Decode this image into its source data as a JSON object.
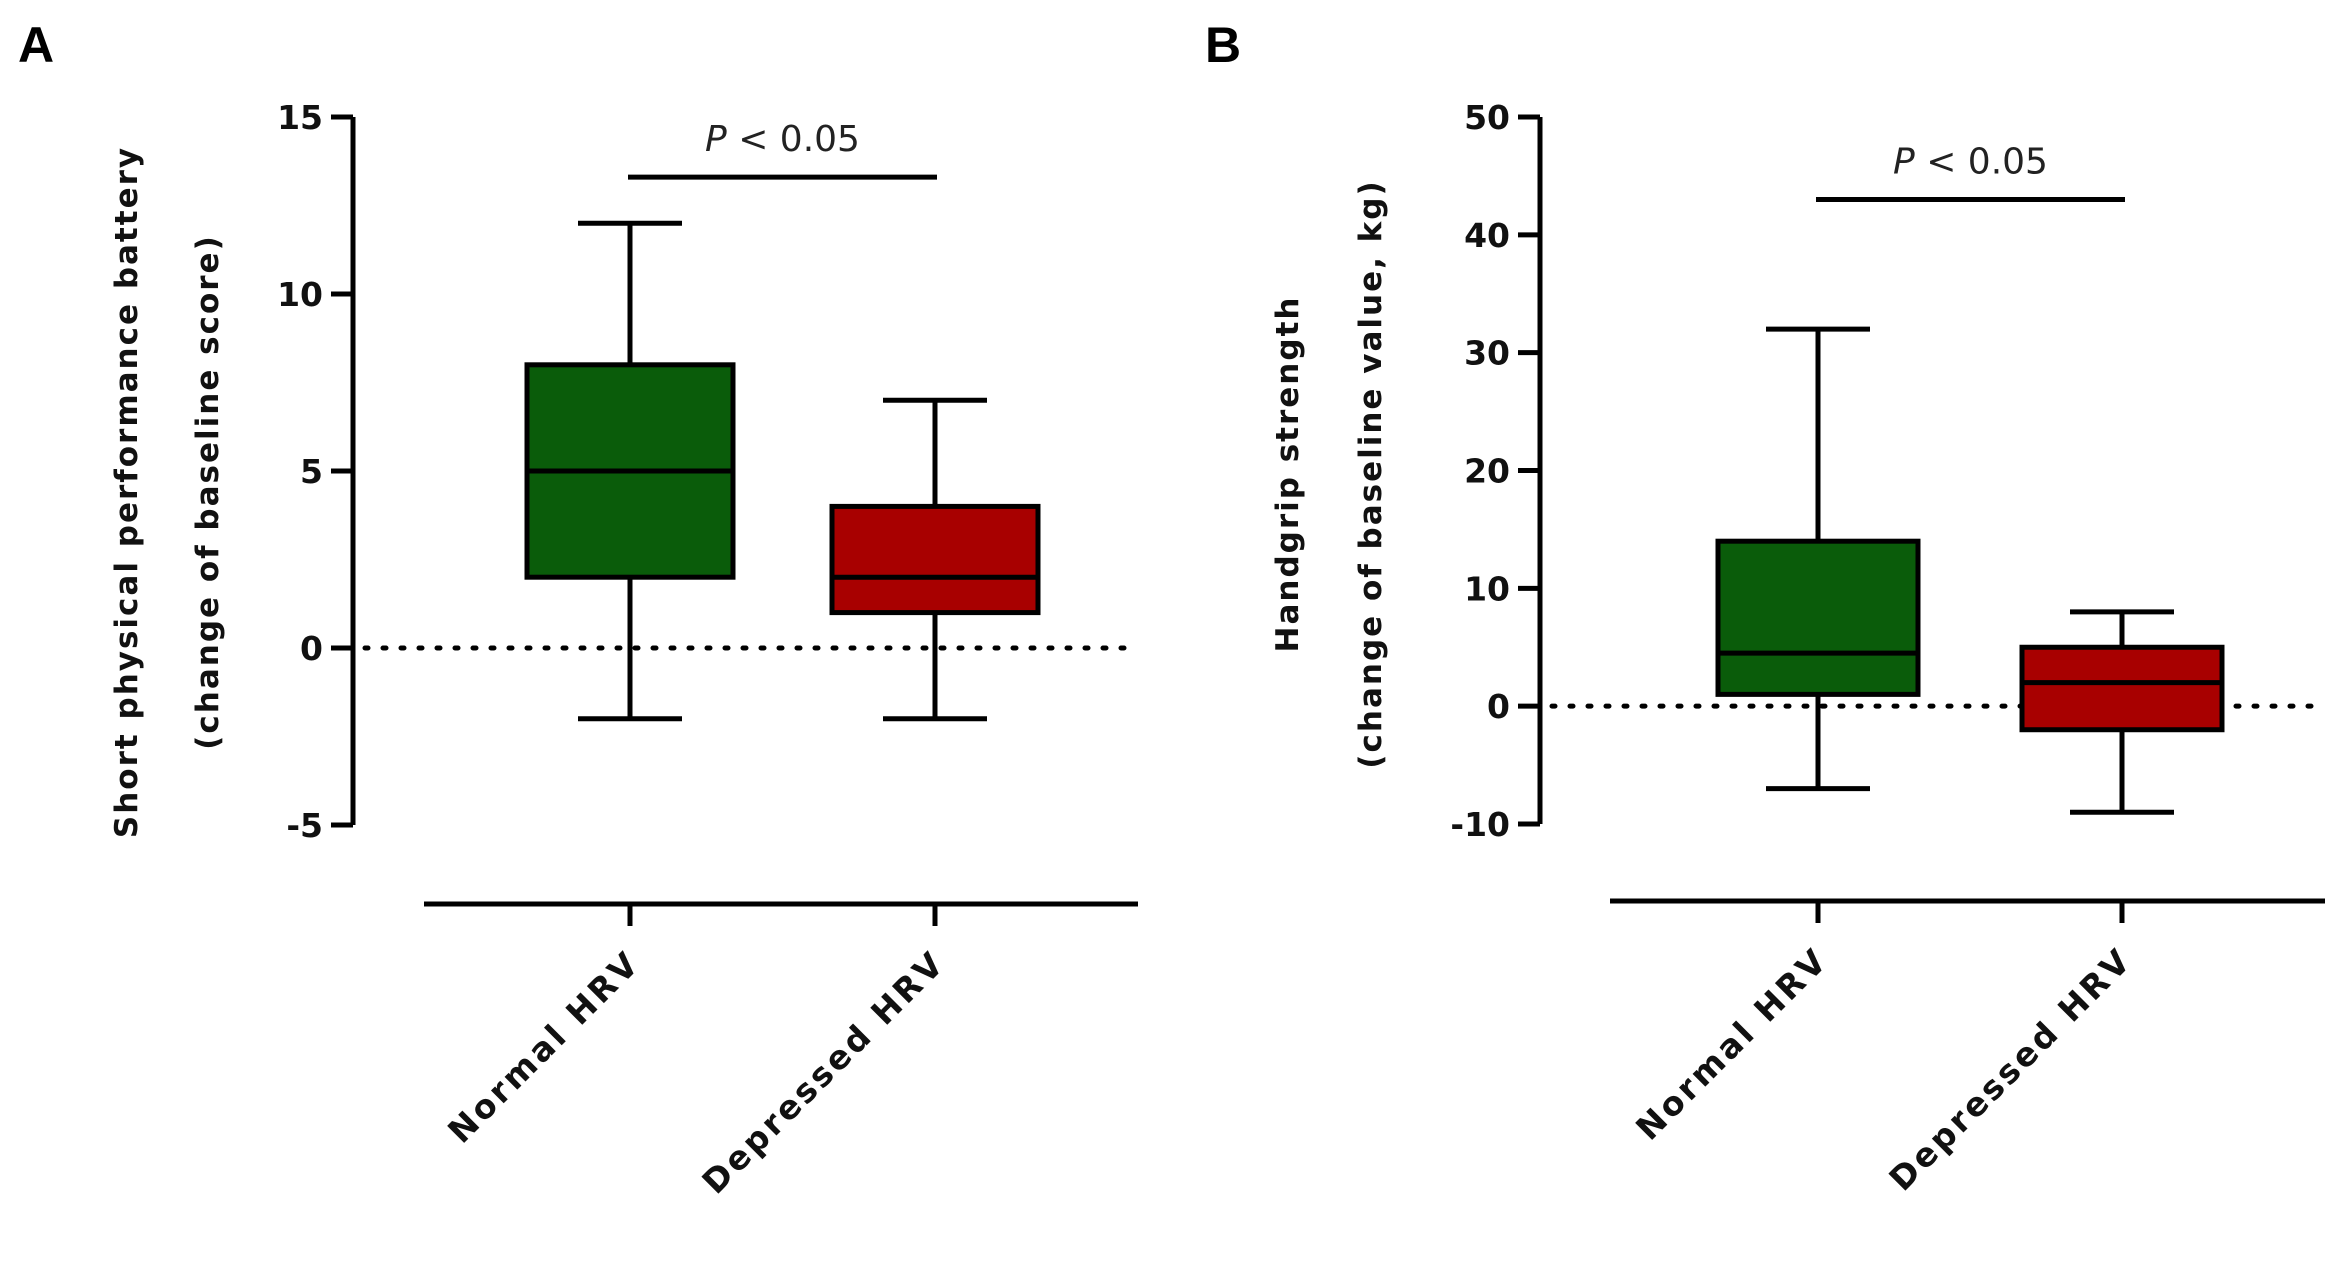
{
  "chart_data": [
    {
      "panel": "A",
      "type": "box",
      "ylabel_line1": "Short physical performance battery",
      "ylabel_line2": "(change of baseline score)",
      "ylim": [
        -5,
        15
      ],
      "yticks": [
        15,
        10,
        5,
        0,
        -5
      ],
      "ytick_labels": [
        "15",
        "10",
        "5",
        "0",
        "-5"
      ],
      "reference_line": 0,
      "categories": [
        "Normal HRV",
        "Depressed HRV"
      ],
      "boxes": [
        {
          "name": "Normal HRV",
          "min": -2,
          "q1": 2,
          "median": 5,
          "q3": 8,
          "max": 12,
          "color": "#0a5c0a"
        },
        {
          "name": "Depressed HRV",
          "min": -2,
          "q1": 1,
          "median": 2,
          "q3": 4,
          "max": 7,
          "color": "#a80000"
        }
      ],
      "significance": {
        "p_symbol": "P",
        "text": " < 0.05",
        "y": 13.3
      }
    },
    {
      "panel": "B",
      "type": "box",
      "ylabel_line1": "Handgrip strength",
      "ylabel_line2": "(change of baseline value, kg)",
      "ylim": [
        -10,
        50
      ],
      "yticks": [
        50,
        40,
        30,
        20,
        10,
        0,
        -10
      ],
      "ytick_labels": [
        "50",
        "40",
        "30",
        "20",
        "10",
        "0",
        "-10"
      ],
      "reference_line": 0,
      "categories": [
        "Normal HRV",
        "Depressed HRV"
      ],
      "boxes": [
        {
          "name": "Normal HRV",
          "min": -7,
          "q1": 1,
          "median": 4.5,
          "q3": 14,
          "max": 32,
          "color": "#0a5c0a"
        },
        {
          "name": "Depressed HRV",
          "min": -9,
          "q1": -2,
          "median": 2,
          "q3": 5,
          "max": 8,
          "color": "#a80000"
        }
      ],
      "significance": {
        "p_symbol": "P",
        "text": " < 0.05",
        "y": 43
      }
    }
  ]
}
